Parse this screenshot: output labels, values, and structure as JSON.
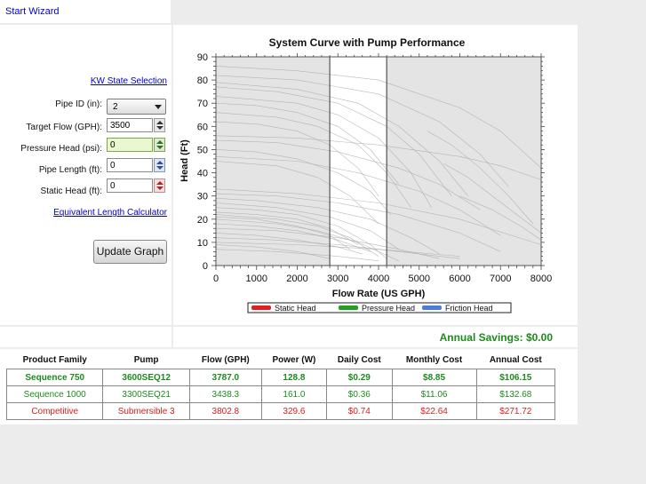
{
  "header": {
    "start_wizard": "Start Wizard"
  },
  "controls": {
    "kw_state_link": "KW State Selection",
    "pipe_id_label": "Pipe ID (in):",
    "pipe_id_value": "2",
    "target_flow_label": "Target Flow (GPH):",
    "target_flow_value": "3500",
    "pressure_head_label": "Pressure Head (psi):",
    "pressure_head_value": "0",
    "pipe_length_label": "Pipe Length (ft):",
    "pipe_length_value": "0",
    "static_head_label": "Static Head (ft):",
    "static_head_value": "0",
    "equiv_length_link": "Equivalent Length Calculator",
    "update_button": "Update Graph"
  },
  "chart_data": {
    "type": "line",
    "title": "System Curve with Pump Performance",
    "xlabel": "Flow Rate (US GPH)",
    "ylabel": "Head (Ft)",
    "xlim": [
      0,
      8000
    ],
    "ylim": [
      0,
      90
    ],
    "x_ticks": [
      0,
      1000,
      2000,
      3000,
      4000,
      5000,
      6000,
      7000,
      8000
    ],
    "y_ticks": [
      0,
      10,
      20,
      30,
      40,
      50,
      60,
      70,
      80,
      90
    ],
    "highlight_band": [
      2800,
      4200
    ],
    "grid": false,
    "legend_position": "bottom",
    "legend": [
      {
        "name": "Static Head",
        "color": "#e02020"
      },
      {
        "name": "Pressure Head",
        "color": "#20a020"
      },
      {
        "name": "Friction Head",
        "color": "#4a7fd8"
      }
    ],
    "background_curves": [
      [
        [
          0,
          86
        ],
        [
          2000,
          84
        ],
        [
          4000,
          80
        ],
        [
          6000,
          68
        ],
        [
          7000,
          58
        ],
        [
          8000,
          42
        ]
      ],
      [
        [
          0,
          82
        ],
        [
          2000,
          80
        ],
        [
          4000,
          74
        ],
        [
          5500,
          62
        ],
        [
          6500,
          48
        ],
        [
          7200,
          34
        ]
      ],
      [
        [
          0,
          79
        ],
        [
          2000,
          76
        ],
        [
          3500,
          70
        ],
        [
          4500,
          60
        ],
        [
          5500,
          45
        ],
        [
          6200,
          30
        ]
      ],
      [
        [
          0,
          77
        ],
        [
          1500,
          75
        ],
        [
          3000,
          70
        ],
        [
          4200,
          60
        ],
        [
          5000,
          48
        ],
        [
          5800,
          30
        ]
      ],
      [
        [
          0,
          73
        ],
        [
          2000,
          70
        ],
        [
          3000,
          65
        ],
        [
          4000,
          55
        ],
        [
          4800,
          40
        ],
        [
          5300,
          25
        ]
      ],
      [
        [
          0,
          70
        ],
        [
          1000,
          69
        ],
        [
          2000,
          66
        ],
        [
          3000,
          60
        ],
        [
          3800,
          50
        ],
        [
          4500,
          35
        ]
      ],
      [
        [
          0,
          66
        ],
        [
          1500,
          64
        ],
        [
          2500,
          60
        ],
        [
          3500,
          52
        ],
        [
          4200,
          40
        ],
        [
          4800,
          25
        ]
      ],
      [
        [
          0,
          62
        ],
        [
          1000,
          61
        ],
        [
          2000,
          58
        ],
        [
          2800,
          52
        ],
        [
          3500,
          42
        ],
        [
          4000,
          30
        ]
      ],
      [
        [
          0,
          56
        ],
        [
          2000,
          55
        ],
        [
          4000,
          52
        ],
        [
          6000,
          47
        ],
        [
          7000,
          43
        ],
        [
          8000,
          37
        ]
      ],
      [
        [
          0,
          54
        ],
        [
          1500,
          53
        ],
        [
          3000,
          49
        ],
        [
          4500,
          42
        ],
        [
          5500,
          35
        ],
        [
          6500,
          24
        ]
      ],
      [
        [
          0,
          50
        ],
        [
          1000,
          49
        ],
        [
          2000,
          46
        ],
        [
          3000,
          40
        ],
        [
          3800,
          32
        ],
        [
          4300,
          22
        ]
      ],
      [
        [
          0,
          47
        ],
        [
          2000,
          45
        ],
        [
          3500,
          40
        ],
        [
          5000,
          32
        ],
        [
          6000,
          24
        ],
        [
          7000,
          13
        ]
      ],
      [
        [
          0,
          45
        ],
        [
          1500,
          43
        ],
        [
          2500,
          38
        ],
        [
          3300,
          30
        ],
        [
          4000,
          18
        ]
      ],
      [
        [
          0,
          33
        ],
        [
          2000,
          31
        ],
        [
          4000,
          27
        ],
        [
          6000,
          20
        ],
        [
          8000,
          9
        ]
      ],
      [
        [
          0,
          31
        ],
        [
          1500,
          30
        ],
        [
          3000,
          27
        ],
        [
          4500,
          22
        ],
        [
          6000,
          14
        ],
        [
          7000,
          6
        ]
      ],
      [
        [
          0,
          29
        ],
        [
          1000,
          28
        ],
        [
          2500,
          25
        ],
        [
          3800,
          20
        ],
        [
          4800,
          12
        ],
        [
          5500,
          5
        ]
      ],
      [
        [
          0,
          27
        ],
        [
          1500,
          25
        ],
        [
          2800,
          21
        ],
        [
          3800,
          15
        ],
        [
          4500,
          7
        ]
      ],
      [
        [
          0,
          25
        ],
        [
          1000,
          24
        ],
        [
          2000,
          22
        ],
        [
          3000,
          17
        ],
        [
          3800,
          9
        ],
        [
          4200,
          3
        ]
      ],
      [
        [
          0,
          23
        ],
        [
          1000,
          22
        ],
        [
          2000,
          20
        ],
        [
          2800,
          16
        ],
        [
          3500,
          9
        ]
      ],
      [
        [
          0,
          22
        ],
        [
          1500,
          20
        ],
        [
          2500,
          17
        ],
        [
          3300,
          12
        ],
        [
          4000,
          4
        ]
      ],
      [
        [
          0,
          21
        ],
        [
          1000,
          20
        ],
        [
          2000,
          17
        ],
        [
          2800,
          13
        ],
        [
          3300,
          7
        ]
      ],
      [
        [
          0,
          20
        ],
        [
          1500,
          18
        ],
        [
          2500,
          15
        ],
        [
          3500,
          10
        ],
        [
          4500,
          2
        ]
      ],
      [
        [
          0,
          18
        ],
        [
          1000,
          17
        ],
        [
          2000,
          15
        ],
        [
          3000,
          11
        ],
        [
          3800,
          6
        ]
      ],
      [
        [
          0,
          16
        ],
        [
          1500,
          15
        ],
        [
          3000,
          12
        ],
        [
          4500,
          7
        ],
        [
          5500,
          3
        ]
      ],
      [
        [
          0,
          14
        ],
        [
          1000,
          13
        ],
        [
          2000,
          11
        ],
        [
          3000,
          8
        ],
        [
          3600,
          5
        ]
      ],
      [
        [
          0,
          12
        ],
        [
          1500,
          11
        ],
        [
          3000,
          9
        ],
        [
          4500,
          6
        ],
        [
          6000,
          3
        ]
      ],
      [
        [
          0,
          10
        ],
        [
          2000,
          9
        ],
        [
          4000,
          7
        ],
        [
          6000,
          4
        ]
      ],
      [
        [
          0,
          9
        ],
        [
          1000,
          8
        ],
        [
          2000,
          6
        ],
        [
          2800,
          3
        ]
      ],
      [
        [
          0,
          7
        ],
        [
          1500,
          6
        ],
        [
          3000,
          4
        ],
        [
          4000,
          2
        ]
      ],
      [
        [
          5200,
          58
        ],
        [
          5800,
          52
        ],
        [
          6500,
          42
        ],
        [
          7200,
          30
        ],
        [
          7800,
          18
        ]
      ],
      [
        [
          5600,
          44
        ],
        [
          6200,
          38
        ],
        [
          6800,
          30
        ],
        [
          7400,
          22
        ],
        [
          8000,
          14
        ]
      ],
      [
        [
          6000,
          30
        ],
        [
          6800,
          24
        ],
        [
          7500,
          17
        ],
        [
          8000,
          11
        ]
      ]
    ]
  },
  "savings": {
    "label": "Annual Savings: $0.00"
  },
  "results": {
    "headers": [
      "Product Family",
      "Pump",
      "Flow (GPH)",
      "Power (W)",
      "Daily Cost",
      "Monthly Cost",
      "Annual Cost"
    ],
    "rows": [
      {
        "cells": [
          "Sequence 750",
          "3600SEQ12",
          "3787.0",
          "128.8",
          "$0.29",
          "$8.85",
          "$106.15"
        ],
        "color": "#1e8a1e",
        "bold": true
      },
      {
        "cells": [
          "Sequence 1000",
          "3300SEQ21",
          "3438.3",
          "161.0",
          "$0.36",
          "$11.06",
          "$132.68"
        ],
        "color": "#1e8a1e",
        "bold": false
      },
      {
        "cells": [
          "Competitive",
          "Submersible 3",
          "3802.8",
          "329.6",
          "$0.74",
          "$22.64",
          "$271.72"
        ],
        "color": "#dd1c1c",
        "bold": false
      }
    ]
  }
}
